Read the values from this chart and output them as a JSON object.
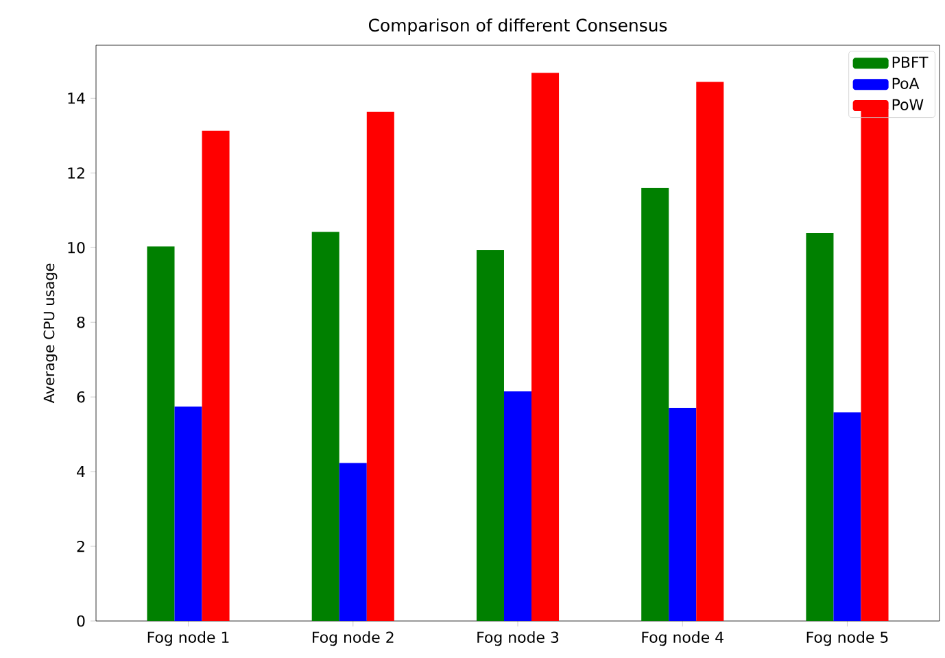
{
  "chart_data": {
    "type": "bar",
    "title": "Comparison of different Consensus",
    "ylabel": "Average CPU usage",
    "categories": [
      "Fog node 1",
      "Fog node 2",
      "Fog node 3",
      "Fog node 4",
      "Fog node 5"
    ],
    "series": [
      {
        "name": "PBFT",
        "color": "#008000",
        "values": [
          10.03,
          10.42,
          9.93,
          11.6,
          10.39
        ]
      },
      {
        "name": "PoA",
        "color": "#0000ff",
        "values": [
          5.74,
          4.23,
          6.15,
          5.71,
          5.59
        ]
      },
      {
        "name": "PoW",
        "color": "#ff0000",
        "values": [
          13.13,
          13.64,
          14.68,
          14.44,
          13.7
        ]
      }
    ],
    "ylim": [
      0,
      15.42
    ],
    "yticks": [
      0,
      2,
      4,
      6,
      8,
      10,
      12,
      14
    ],
    "grid": false,
    "legend": "top right"
  }
}
